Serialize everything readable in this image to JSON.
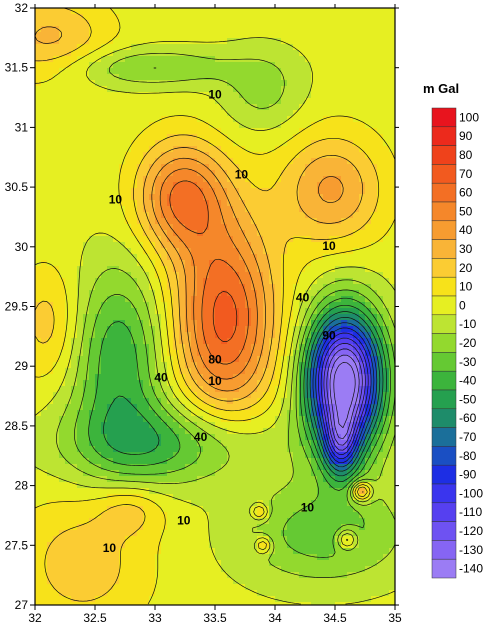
{
  "chart_data": {
    "type": "contour",
    "title": "",
    "xlabel": "",
    "ylabel": "",
    "unit": "m Gal",
    "xlim": [
      32,
      35
    ],
    "ylim": [
      27,
      32
    ],
    "x_ticks": [
      "32",
      "32.5",
      "33",
      "33.5",
      "34",
      "34.5",
      "35"
    ],
    "y_ticks": [
      "27",
      "27.5",
      "28",
      "28.5",
      "29",
      "29.5",
      "30",
      "30.5",
      "31",
      "31.5",
      "32"
    ],
    "grid": false,
    "legend_position": "right",
    "color_scale": [
      {
        "value": 100,
        "color": "#e8141e"
      },
      {
        "value": 90,
        "color": "#ec2a1c"
      },
      {
        "value": 80,
        "color": "#ef421b"
      },
      {
        "value": 70,
        "color": "#f25a1f"
      },
      {
        "value": 60,
        "color": "#f36f24"
      },
      {
        "value": 50,
        "color": "#f5872a"
      },
      {
        "value": 40,
        "color": "#f79c30"
      },
      {
        "value": 30,
        "color": "#f9b437"
      },
      {
        "value": 20,
        "color": "#fbcc33"
      },
      {
        "value": 10,
        "color": "#f7e21a"
      },
      {
        "value": 0,
        "color": "#e6ef22"
      },
      {
        "value": -10,
        "color": "#bde432"
      },
      {
        "value": -20,
        "color": "#93d92e"
      },
      {
        "value": -30,
        "color": "#65c933"
      },
      {
        "value": -40,
        "color": "#3cb43c"
      },
      {
        "value": -50,
        "color": "#25a04f"
      },
      {
        "value": -60,
        "color": "#1e8c6a"
      },
      {
        "value": -70,
        "color": "#1b6f9a"
      },
      {
        "value": -80,
        "color": "#1a4fc3"
      },
      {
        "value": -90,
        "color": "#1d2ee4"
      },
      {
        "value": -100,
        "color": "#3a35ee"
      },
      {
        "value": -110,
        "color": "#5640f0"
      },
      {
        "value": -120,
        "color": "#6e52f2"
      },
      {
        "value": -130,
        "color": "#8665f3"
      },
      {
        "value": -140,
        "color": "#9b7cf4"
      }
    ],
    "contour_labels": [
      {
        "text": "10",
        "x": 33.5,
        "y": 31.27
      },
      {
        "text": "10",
        "x": 32.67,
        "y": 30.39
      },
      {
        "text": "10",
        "x": 33.72,
        "y": 30.6
      },
      {
        "text": "10",
        "x": 34.45,
        "y": 30.0
      },
      {
        "text": "40",
        "x": 34.23,
        "y": 29.57
      },
      {
        "text": "90",
        "x": 34.45,
        "y": 29.25
      },
      {
        "text": "80",
        "x": 33.5,
        "y": 29.05
      },
      {
        "text": "10",
        "x": 33.5,
        "y": 28.87
      },
      {
        "text": "40",
        "x": 33.05,
        "y": 28.9
      },
      {
        "text": "40",
        "x": 33.38,
        "y": 28.4
      },
      {
        "text": "10",
        "x": 34.27,
        "y": 27.81
      },
      {
        "text": "10",
        "x": 33.24,
        "y": 27.7
      },
      {
        "text": "10",
        "x": 32.62,
        "y": 27.47
      }
    ],
    "anomalies": [
      {
        "x": 33.58,
        "y": 29.4,
        "sx": 0.3,
        "sy": 0.6,
        "amp": 70
      },
      {
        "x": 33.22,
        "y": 30.42,
        "sx": 0.26,
        "sy": 0.32,
        "amp": 55
      },
      {
        "x": 34.47,
        "y": 30.48,
        "sx": 0.3,
        "sy": 0.33,
        "amp": 38
      },
      {
        "x": 32.12,
        "y": 31.75,
        "sx": 0.35,
        "sy": 0.25,
        "amp": 28
      },
      {
        "x": 32.12,
        "y": 29.35,
        "sx": 0.2,
        "sy": 0.35,
        "amp": 22
      },
      {
        "x": 32.4,
        "y": 27.35,
        "sx": 0.4,
        "sy": 0.4,
        "amp": 22
      },
      {
        "x": 32.8,
        "y": 27.8,
        "sx": 0.2,
        "sy": 0.15,
        "amp": 18
      },
      {
        "x": 34.58,
        "y": 28.88,
        "sx": 0.22,
        "sy": 0.4,
        "amp": -155
      },
      {
        "x": 34.55,
        "y": 28.35,
        "sx": 0.1,
        "sy": 0.2,
        "amp": -60
      },
      {
        "x": 32.7,
        "y": 29.05,
        "sx": 0.28,
        "sy": 0.55,
        "amp": -42
      },
      {
        "x": 33.1,
        "y": 28.35,
        "sx": 0.6,
        "sy": 0.25,
        "amp": -38
      },
      {
        "x": 32.95,
        "y": 31.5,
        "sx": 0.5,
        "sy": 0.12,
        "amp": -25
      },
      {
        "x": 33.9,
        "y": 31.3,
        "sx": 0.25,
        "sy": 0.25,
        "amp": -18
      },
      {
        "x": 34.4,
        "y": 27.6,
        "sx": 0.5,
        "sy": 0.3,
        "amp": -30
      },
      {
        "x": 34.72,
        "y": 27.95,
        "sx": 0.06,
        "sy": 0.06,
        "amp": 50
      },
      {
        "x": 33.87,
        "y": 27.78,
        "sx": 0.05,
        "sy": 0.05,
        "amp": 30
      },
      {
        "x": 33.9,
        "y": 27.5,
        "sx": 0.05,
        "sy": 0.05,
        "amp": 30
      },
      {
        "x": 34.6,
        "y": 27.55,
        "sx": 0.06,
        "sy": 0.06,
        "amp": 35
      }
    ],
    "base_value": 4
  }
}
